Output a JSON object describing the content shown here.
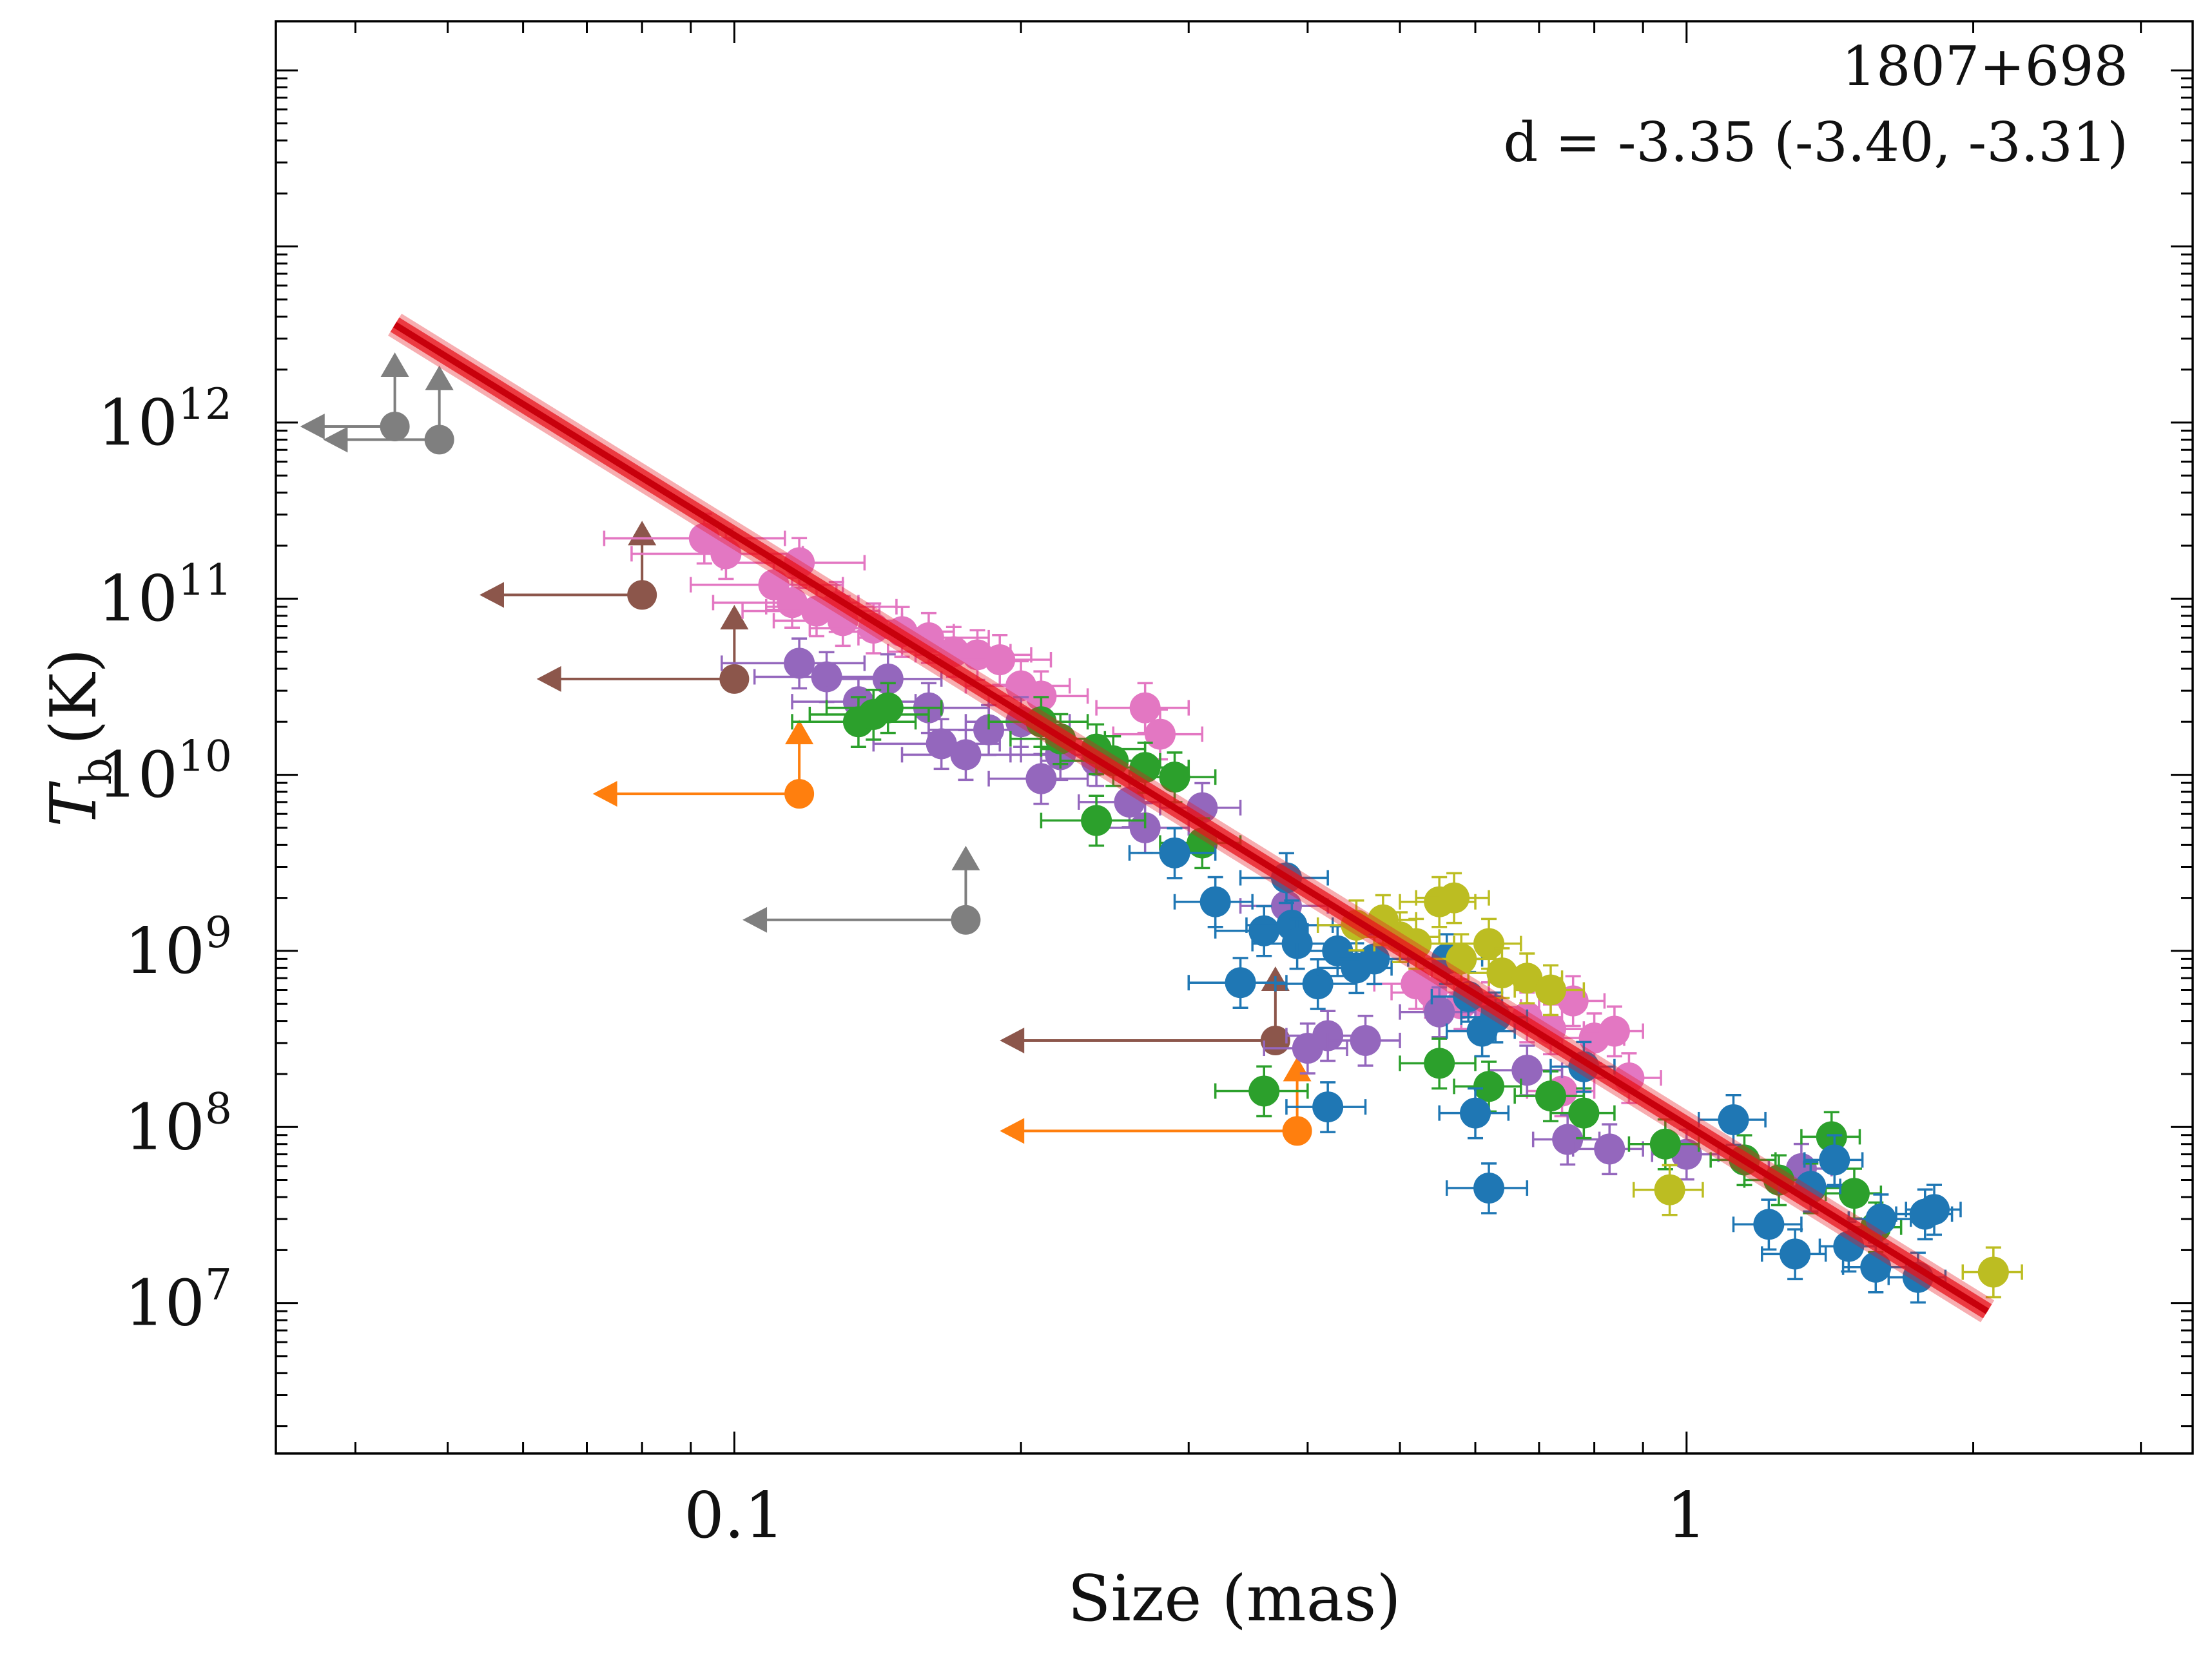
{
  "chart_data": {
    "type": "scatter",
    "xscale": "log",
    "yscale": "log",
    "xlim": [
      0.033,
      3.4
    ],
    "ylim": [
      1400000,
      190000000000000
    ],
    "xlabel": "Size (mas)",
    "ylabel_main": "T",
    "ylabel_sub": "b",
    "ylabel_unit": "(K)",
    "xticks": [
      {
        "value": 0.1,
        "label": "0.1"
      },
      {
        "value": 1,
        "label": "1"
      }
    ],
    "yticks": [
      {
        "value": 10000000,
        "base": "10",
        "exp": "7"
      },
      {
        "value": 100000000,
        "base": "10",
        "exp": "8"
      },
      {
        "value": 1000000000,
        "base": "10",
        "exp": "9"
      },
      {
        "value": 10000000000,
        "base": "10",
        "exp": "10"
      },
      {
        "value": 100000000000,
        "base": "10",
        "exp": "11"
      },
      {
        "value": 1000000000000,
        "base": "10",
        "exp": "12"
      }
    ],
    "annotation": {
      "source": "1807+698",
      "fit_text": "d = -3.35 (-3.40, -3.31)"
    },
    "fit": {
      "slope": -3.35,
      "x_range": [
        0.044,
        2.07
      ],
      "color": "#e8141c"
    },
    "series": [
      {
        "name": "pink",
        "color": "#e377c2",
        "points": [
          [
            0.093,
            220000000000.0,
            0.02
          ],
          [
            0.098,
            180000000000.0,
            0.02
          ],
          [
            0.11,
            120000000000.0,
            0.02
          ],
          [
            0.117,
            160000000000.0,
            0.02
          ],
          [
            0.115,
            95000000000.0,
            0.02
          ],
          [
            0.122,
            85000000000.0,
            0.02
          ],
          [
            0.128,
            90000000000.0,
            0.02
          ],
          [
            0.13,
            75000000000.0,
            0.02
          ],
          [
            0.14,
            68000000000.0,
            0.02
          ],
          [
            0.15,
            65000000000.0,
            0.02
          ],
          [
            0.16,
            60000000000.0,
            0.025
          ],
          [
            0.17,
            50000000000.0,
            0.025
          ],
          [
            0.18,
            48000000000.0,
            0.025
          ],
          [
            0.19,
            45000000000.0,
            0.025
          ],
          [
            0.2,
            32000000000.0,
            0.025
          ],
          [
            0.21,
            28000000000.0,
            0.025
          ],
          [
            0.27,
            24000000000.0,
            0.03
          ],
          [
            0.28,
            17000000000.0,
            0.03
          ],
          [
            0.52,
            650000000.0,
            0.05
          ],
          [
            0.54,
            580000000.0,
            0.05
          ],
          [
            0.58,
            500000000.0,
            0.05
          ],
          [
            0.62,
            480000000.0,
            0.05
          ],
          [
            0.68,
            420000000.0,
            0.06
          ],
          [
            0.72,
            360000000.0,
            0.06
          ],
          [
            0.76,
            520000000.0,
            0.06
          ],
          [
            0.8,
            320000000.0,
            0.06
          ],
          [
            0.84,
            350000000.0,
            0.06
          ],
          [
            0.87,
            190000000.0,
            0.07
          ],
          [
            0.74,
            160000000.0,
            0.06
          ]
        ]
      },
      {
        "name": "purple",
        "color": "#9467bd",
        "points": [
          [
            0.117,
            43000000000.0,
            0.02
          ],
          [
            0.125,
            36000000000.0,
            0.02
          ],
          [
            0.135,
            26000000000.0,
            0.02
          ],
          [
            0.145,
            35000000000.0,
            0.02
          ],
          [
            0.16,
            24000000000.0,
            0.025
          ],
          [
            0.165,
            15000000000.0,
            0.025
          ],
          [
            0.175,
            13000000000.0,
            0.025
          ],
          [
            0.185,
            18000000000.0,
            0.025
          ],
          [
            0.2,
            20000000000.0,
            0.025
          ],
          [
            0.21,
            9500000000.0,
            0.025
          ],
          [
            0.22,
            13000000000.0,
            0.025
          ],
          [
            0.24,
            12000000000.0,
            0.03
          ],
          [
            0.26,
            7000000000.0,
            0.03
          ],
          [
            0.27,
            5000000000.0,
            0.03
          ],
          [
            0.31,
            6500000000.0,
            0.03
          ],
          [
            0.38,
            1800000000.0,
            0.04
          ],
          [
            0.4,
            280000000.0,
            0.04
          ],
          [
            0.42,
            330000000.0,
            0.04
          ],
          [
            0.46,
            310000000.0,
            0.04
          ],
          [
            0.55,
            450000000.0,
            0.05
          ],
          [
            0.68,
            210000000.0,
            0.06
          ],
          [
            0.75,
            85000000.0,
            0.06
          ],
          [
            0.83,
            75000000.0,
            0.07
          ],
          [
            1.0,
            70000000.0,
            0.08
          ],
          [
            1.32,
            58000000.0,
            0.1
          ]
        ]
      },
      {
        "name": "green",
        "color": "#2ca02c",
        "points": [
          [
            0.135,
            20000000000.0,
            0.02
          ],
          [
            0.14,
            22000000000.0,
            0.02
          ],
          [
            0.145,
            24000000000.0,
            0.02
          ],
          [
            0.21,
            20000000000.0,
            0.025
          ],
          [
            0.22,
            16000000000.0,
            0.025
          ],
          [
            0.24,
            14000000000.0,
            0.03
          ],
          [
            0.25,
            12000000000.0,
            0.03
          ],
          [
            0.27,
            11000000000.0,
            0.03
          ],
          [
            0.29,
            9700000000.0,
            0.03
          ],
          [
            0.24,
            5500000000.0,
            0.03
          ],
          [
            0.31,
            4100000000.0,
            0.03
          ],
          [
            0.36,
            160000000.0,
            0.04
          ],
          [
            0.55,
            230000000.0,
            0.05
          ],
          [
            0.62,
            170000000.0,
            0.05
          ],
          [
            0.72,
            150000000.0,
            0.06
          ],
          [
            0.78,
            120000000.0,
            0.06
          ],
          [
            0.95,
            80000000.0,
            0.08
          ],
          [
            1.15,
            65000000.0,
            0.09
          ],
          [
            1.25,
            50000000.0,
            0.1
          ],
          [
            1.35,
            45000000.0,
            0.1
          ],
          [
            1.42,
            88000000.0,
            0.1
          ],
          [
            1.5,
            42000000.0,
            0.1
          ],
          [
            1.58,
            27000000.0,
            0.1
          ]
        ]
      },
      {
        "name": "blue",
        "color": "#1f77b4",
        "points": [
          [
            0.29,
            3600000000.0,
            0.03
          ],
          [
            0.32,
            1900000000.0,
            0.03
          ],
          [
            0.34,
            660000000.0,
            0.04
          ],
          [
            0.36,
            1300000000.0,
            0.04
          ],
          [
            0.38,
            2600000000.0,
            0.04
          ],
          [
            0.385,
            1400000000.0,
            0.04
          ],
          [
            0.39,
            1100000000.0,
            0.04
          ],
          [
            0.41,
            650000000.0,
            0.04
          ],
          [
            0.43,
            1000000000.0,
            0.04
          ],
          [
            0.45,
            800000000.0,
            0.04
          ],
          [
            0.47,
            900000000.0,
            0.04
          ],
          [
            0.42,
            130000000.0,
            0.04
          ],
          [
            0.56,
            900000000.0,
            0.05
          ],
          [
            0.59,
            550000000.0,
            0.05
          ],
          [
            0.61,
            350000000.0,
            0.05
          ],
          [
            0.63,
            420000000.0,
            0.05
          ],
          [
            0.6,
            120000000.0,
            0.05
          ],
          [
            0.62,
            45000000.0,
            0.06
          ],
          [
            0.78,
            220000000.0,
            0.06
          ],
          [
            1.12,
            110000000.0,
            0.09
          ],
          [
            1.22,
            28000000.0,
            0.1
          ],
          [
            1.3,
            19000000.0,
            0.1
          ],
          [
            1.35,
            46000000.0,
            0.1
          ],
          [
            1.43,
            65000000.0,
            0.1
          ],
          [
            1.48,
            21000000.0,
            0.1
          ],
          [
            1.6,
            30000000.0,
            0.12
          ],
          [
            1.75,
            14000000.0,
            0.12
          ],
          [
            1.78,
            32000000.0,
            0.12
          ],
          [
            1.82,
            34000000.0,
            0.12
          ],
          [
            1.58,
            16000000.0,
            0.12
          ]
        ]
      },
      {
        "name": "olive",
        "color": "#bcbd22",
        "points": [
          [
            0.45,
            1400000000.0,
            0.04
          ],
          [
            0.48,
            1500000000.0,
            0.04
          ],
          [
            0.5,
            1200000000.0,
            0.05
          ],
          [
            0.52,
            1100000000.0,
            0.05
          ],
          [
            0.55,
            1900000000.0,
            0.05
          ],
          [
            0.57,
            2000000000.0,
            0.05
          ],
          [
            0.58,
            900000000.0,
            0.05
          ],
          [
            0.62,
            1100000000.0,
            0.05
          ],
          [
            0.64,
            750000000.0,
            0.05
          ],
          [
            0.68,
            700000000.0,
            0.06
          ],
          [
            0.72,
            600000000.0,
            0.06
          ],
          [
            0.96,
            44000000.0,
            0.08
          ],
          [
            2.1,
            15000000.0,
            0.15
          ]
        ]
      }
    ],
    "limits": [
      {
        "color": "#7f7f7f",
        "x": 0.044,
        "y": 950000000000.0,
        "x_left": 0.035,
        "arrow_up": true
      },
      {
        "color": "#7f7f7f",
        "x": 0.049,
        "y": 800000000000.0,
        "x_left": 0.037,
        "arrow_up": true
      },
      {
        "color": "#8c564b",
        "x": 0.08,
        "y": 105000000000.0,
        "x_left": 0.054,
        "arrow_up": true
      },
      {
        "color": "#8c564b",
        "x": 0.1,
        "y": 35000000000.0,
        "x_left": 0.062,
        "arrow_up": true
      },
      {
        "color": "#ff7f0e",
        "x": 0.117,
        "y": 7800000000.0,
        "x_left": 0.071,
        "arrow_up": true
      },
      {
        "color": "#7f7f7f",
        "x": 0.175,
        "y": 1500000000.0,
        "x_left": 0.102,
        "arrow_up": true
      },
      {
        "color": "#8c564b",
        "x": 0.37,
        "y": 310000000.0,
        "x_left": 0.19,
        "arrow_up": true
      },
      {
        "color": "#ff7f0e",
        "x": 0.39,
        "y": 95000000.0,
        "x_left": 0.19,
        "arrow_up": true
      }
    ]
  }
}
